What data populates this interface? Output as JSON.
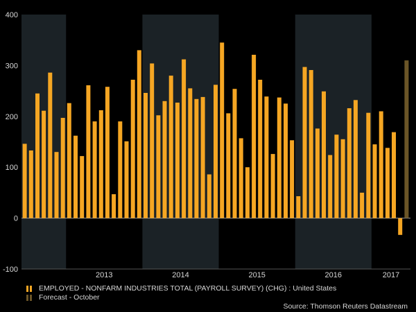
{
  "chart_data": {
    "type": "bar",
    "title": "",
    "xlabel": "",
    "ylabel": "",
    "ylim": [
      -100,
      400
    ],
    "yticks": [
      -100,
      0,
      100,
      200,
      300,
      400
    ],
    "year_labels": [
      "2013",
      "2014",
      "2015",
      "2016",
      "2017"
    ],
    "grid": false,
    "alternating_year_shading": true,
    "series": [
      {
        "name": "EMPLOYED - NONFARM INDUSTRIES TOTAL (PAYROLL SURVEY) (CHG) : United States",
        "color": "#f5a623",
        "start": "2012-06",
        "values": [
          146,
          133,
          245,
          211,
          286,
          130,
          197,
          226,
          162,
          122,
          261,
          190,
          212,
          258,
          47,
          190,
          151,
          272,
          330,
          246,
          304,
          202,
          230,
          280,
          227,
          312,
          255,
          234,
          238,
          86,
          262,
          345,
          206,
          254,
          157,
          100,
          321,
          272,
          239,
          126,
          237,
          225,
          153,
          43,
          297,
          291,
          176,
          249,
          124,
          164,
          155,
          216,
          232,
          50,
          207,
          145,
          210,
          138,
          169,
          -33
        ]
      },
      {
        "name": "Forecast - October",
        "color": "#6b5527",
        "values": [
          310
        ]
      }
    ],
    "legend_position": "bottom-left"
  },
  "source": "Source: Thomson Reuters Datastream"
}
